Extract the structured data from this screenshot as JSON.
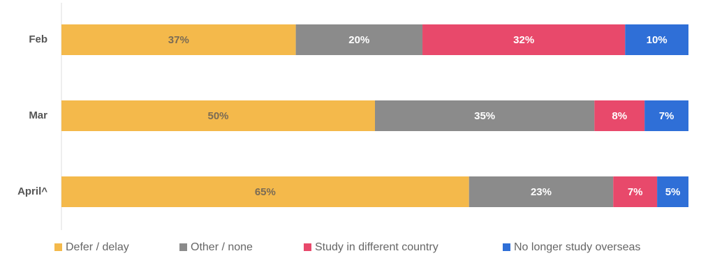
{
  "chart_data": {
    "type": "bar",
    "orientation": "horizontal",
    "stacked": true,
    "categories": [
      "Feb",
      "Mar",
      "April^"
    ],
    "series": [
      {
        "name": "Defer / delay",
        "color": "#f4b94b",
        "label_color": "#7a6b55",
        "values": [
          37,
          50,
          65
        ],
        "value_labels": [
          "37%",
          "50%",
          "65%"
        ]
      },
      {
        "name": "Other / none",
        "color": "#8b8b8b",
        "label_color": "#ffffff",
        "values": [
          20,
          35,
          23
        ],
        "value_labels": [
          "20%",
          "35%",
          "23%"
        ]
      },
      {
        "name": "Study in different country",
        "color": "#e8496b",
        "label_color": "#ffffff",
        "values": [
          32,
          8,
          7
        ],
        "value_labels": [
          "32%",
          "8%",
          "7%"
        ]
      },
      {
        "name": "No longer study overseas",
        "color": "#2f6fd7",
        "label_color": "#ffffff",
        "values": [
          10,
          7,
          5
        ],
        "value_labels": [
          "10%",
          "7%",
          "5%"
        ]
      }
    ]
  }
}
